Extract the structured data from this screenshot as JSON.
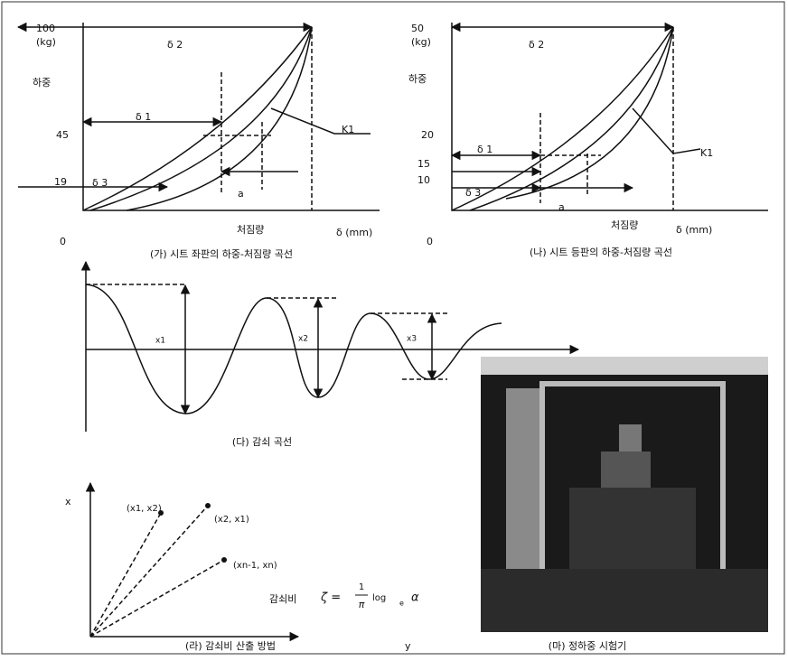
{
  "panel_a": {
    "caption": "(가) 시트 좌판의 하중-처짐량 곡선",
    "y_label": "하중",
    "y_unit": "(kg)",
    "ticks": [
      "100",
      "45",
      "19",
      "0"
    ],
    "delta_2": "δ 2",
    "delta_1": "δ 1",
    "delta_3": "δ 3",
    "k_label": "K1",
    "a_label": "a",
    "x_label": "처짐량",
    "x_unit": "δ (mm)"
  },
  "panel_b": {
    "caption": "(나) 시트 등판의 하중-처짐량 곡선",
    "y_label": "하중",
    "y_unit": "(kg)",
    "ticks": [
      "50",
      "20",
      "15",
      "10",
      "0"
    ],
    "delta_2": "δ 2",
    "delta_1": "δ 1",
    "delta_3": "δ 3",
    "k_label": "K1",
    "a_label": "a",
    "x_label": "처짐량",
    "x_unit": "δ (mm)"
  },
  "panel_c": {
    "caption": "(다) 감쇠 곡선",
    "labels": [
      "x1",
      "x2",
      "x3"
    ]
  },
  "panel_d": {
    "caption": "(라) 감쇠비 산출 방법",
    "x_axis": "x",
    "y_axis": "y",
    "points": [
      "(x1, x2)",
      "(x2, x1)",
      "(xn-1, xn)"
    ],
    "ratio_label": "감쇠비",
    "formula": {
      "symbol": "ζ =",
      "numerator": "1",
      "denominator": "π",
      "log": "log",
      "base": "e",
      "alpha": "α"
    }
  },
  "panel_e": {
    "caption": "(마) 정하중 시험기"
  }
}
